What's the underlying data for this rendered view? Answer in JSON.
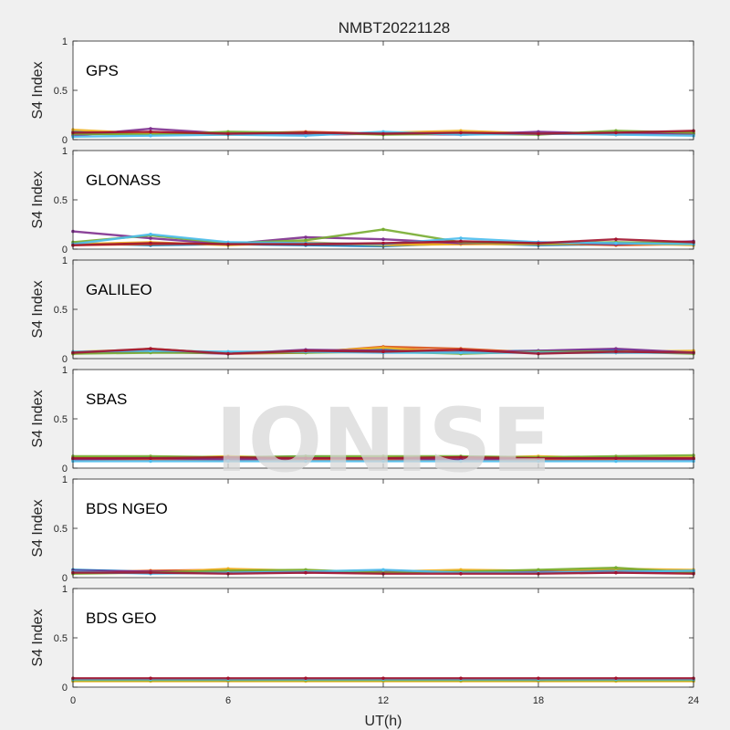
{
  "chart_data": {
    "type": "scatter",
    "title": "NMBT20221128",
    "xlabel": "UT(h)",
    "ylabel": "S4 Index",
    "xlim": [
      0,
      24
    ],
    "ylim": [
      0,
      1
    ],
    "x_ticks": [
      "0",
      "6",
      "12",
      "18",
      "24"
    ],
    "y_ticks": [
      "0",
      "0.5",
      "1"
    ],
    "watermark": "IONISE",
    "series_colors": [
      "#0072bd",
      "#d95319",
      "#edb120",
      "#7e2f8e",
      "#77ac30",
      "#4dbeee",
      "#a2142f"
    ],
    "panels": [
      {
        "name": "GPS",
        "background": "#ffffff",
        "series": [
          {
            "x": [
              0,
              3,
              6,
              9,
              12,
              15,
              18,
              21,
              24
            ],
            "y": [
              0.08,
              0.06,
              0.07,
              0.06,
              0.06,
              0.07,
              0.06,
              0.07,
              0.06
            ]
          },
          {
            "x": [
              0,
              3,
              6,
              9,
              12,
              15,
              18,
              21,
              24
            ],
            "y": [
              0.05,
              0.07,
              0.06,
              0.08,
              0.06,
              0.06,
              0.07,
              0.05,
              0.08
            ]
          },
          {
            "x": [
              0,
              3,
              6,
              9,
              12,
              15,
              18,
              21,
              24
            ],
            "y": [
              0.1,
              0.06,
              0.05,
              0.06,
              0.07,
              0.09,
              0.06,
              0.06,
              0.05
            ]
          },
          {
            "x": [
              0,
              3,
              6,
              9,
              12,
              15,
              18,
              21,
              24
            ],
            "y": [
              0.04,
              0.11,
              0.06,
              0.05,
              0.06,
              0.05,
              0.08,
              0.06,
              0.06
            ]
          },
          {
            "x": [
              0,
              3,
              6,
              9,
              12,
              15,
              18,
              21,
              24
            ],
            "y": [
              0.06,
              0.05,
              0.08,
              0.07,
              0.05,
              0.06,
              0.05,
              0.09,
              0.07
            ]
          },
          {
            "x": [
              0,
              3,
              6,
              9,
              12,
              15,
              18,
              21,
              24
            ],
            "y": [
              0.03,
              0.04,
              0.05,
              0.04,
              0.08,
              0.05,
              0.06,
              0.05,
              0.04
            ]
          },
          {
            "x": [
              0,
              3,
              6,
              9,
              12,
              15,
              18,
              21,
              24
            ],
            "y": [
              0.07,
              0.08,
              0.06,
              0.07,
              0.06,
              0.07,
              0.06,
              0.07,
              0.09
            ]
          }
        ]
      },
      {
        "name": "GLONASS",
        "background": "#ffffff",
        "series": [
          {
            "x": [
              0,
              3,
              6,
              9,
              12,
              15,
              18,
              21,
              24
            ],
            "y": [
              0.06,
              0.04,
              0.05,
              0.04,
              0.03,
              0.06,
              0.04,
              0.05,
              0.06
            ]
          },
          {
            "x": [
              0,
              3,
              6,
              9,
              12,
              15,
              18,
              21,
              24
            ],
            "y": [
              0.04,
              0.05,
              0.06,
              0.05,
              0.05,
              0.05,
              0.06,
              0.04,
              0.05
            ]
          },
          {
            "x": [
              0,
              3,
              6,
              9,
              12,
              15,
              18,
              21,
              24
            ],
            "y": [
              0.05,
              0.07,
              0.04,
              0.07,
              0.04,
              0.05,
              0.05,
              0.06,
              0.04
            ]
          },
          {
            "x": [
              0,
              3,
              6,
              9,
              12,
              15,
              18,
              21,
              24
            ],
            "y": [
              0.18,
              0.11,
              0.05,
              0.12,
              0.1,
              0.06,
              0.07,
              0.05,
              0.08
            ]
          },
          {
            "x": [
              0,
              3,
              6,
              9,
              12,
              15,
              18,
              21,
              24
            ],
            "y": [
              0.07,
              0.14,
              0.06,
              0.09,
              0.2,
              0.07,
              0.06,
              0.07,
              0.06
            ]
          },
          {
            "x": [
              0,
              3,
              6,
              9,
              12,
              15,
              18,
              21,
              24
            ],
            "y": [
              0.05,
              0.15,
              0.07,
              0.06,
              0.05,
              0.11,
              0.07,
              0.06,
              0.05
            ]
          },
          {
            "x": [
              0,
              3,
              6,
              9,
              12,
              15,
              18,
              21,
              24
            ],
            "y": [
              0.04,
              0.06,
              0.05,
              0.05,
              0.06,
              0.08,
              0.06,
              0.1,
              0.07
            ]
          }
        ]
      },
      {
        "name": "GALILEO",
        "background": "#f0f0f0",
        "series": [
          {
            "x": [
              0,
              3,
              6,
              9,
              12,
              15,
              18,
              21,
              24
            ],
            "y": [
              0.06,
              0.08,
              0.06,
              0.08,
              0.09,
              0.07,
              0.08,
              0.09,
              0.06
            ]
          },
          {
            "x": [
              0,
              3,
              6,
              9,
              12,
              15,
              18,
              21,
              24
            ],
            "y": [
              0.05,
              0.1,
              0.05,
              0.06,
              0.12,
              0.1,
              0.06,
              0.06,
              0.07
            ]
          },
          {
            "x": [
              0,
              3,
              6,
              9,
              12,
              15,
              18,
              21,
              24
            ],
            "y": [
              0.07,
              0.09,
              0.06,
              0.07,
              0.11,
              0.06,
              0.07,
              0.07,
              0.08
            ]
          },
          {
            "x": [
              0,
              3,
              6,
              9,
              12,
              15,
              18,
              21,
              24
            ],
            "y": [
              0.06,
              0.07,
              0.05,
              0.09,
              0.08,
              0.06,
              0.08,
              0.1,
              0.06
            ]
          },
          {
            "x": [
              0,
              3,
              6,
              9,
              12,
              15,
              18,
              21,
              24
            ],
            "y": [
              0.05,
              0.06,
              0.06,
              0.06,
              0.07,
              0.05,
              0.07,
              0.07,
              0.05
            ]
          },
          {
            "x": [
              0,
              3,
              6,
              9,
              12,
              15,
              18,
              21,
              24
            ],
            "y": [
              0.07,
              0.08,
              0.07,
              0.07,
              0.06,
              0.06,
              0.06,
              0.06,
              0.06
            ]
          },
          {
            "x": [
              0,
              3,
              6,
              9,
              12,
              15,
              18,
              21,
              24
            ],
            "y": [
              0.06,
              0.1,
              0.05,
              0.08,
              0.07,
              0.09,
              0.05,
              0.07,
              0.06
            ]
          }
        ]
      },
      {
        "name": "SBAS",
        "background": "#ffffff",
        "series": [
          {
            "x": [
              0,
              3,
              6,
              9,
              12,
              15,
              18,
              21,
              24
            ],
            "y": [
              0.1,
              0.11,
              0.1,
              0.12,
              0.1,
              0.11,
              0.1,
              0.11,
              0.1
            ]
          },
          {
            "x": [
              0,
              3,
              6,
              9,
              12,
              15,
              18,
              21,
              24
            ],
            "y": [
              0.08,
              0.09,
              0.08,
              0.09,
              0.08,
              0.09,
              0.08,
              0.09,
              0.09
            ]
          },
          {
            "x": [
              0,
              3,
              6,
              9,
              12,
              15,
              18,
              21,
              24
            ],
            "y": [
              0.11,
              0.1,
              0.12,
              0.1,
              0.11,
              0.1,
              0.12,
              0.1,
              0.11
            ]
          },
          {
            "x": [
              0,
              3,
              6,
              9,
              12,
              15,
              18,
              21,
              24
            ],
            "y": [
              0.09,
              0.1,
              0.09,
              0.1,
              0.1,
              0.09,
              0.1,
              0.1,
              0.09
            ]
          },
          {
            "x": [
              0,
              3,
              6,
              9,
              12,
              15,
              18,
              21,
              24
            ],
            "y": [
              0.12,
              0.12,
              0.11,
              0.12,
              0.12,
              0.12,
              0.11,
              0.12,
              0.13
            ]
          },
          {
            "x": [
              0,
              3,
              6,
              9,
              12,
              15,
              18,
              21,
              24
            ],
            "y": [
              0.07,
              0.07,
              0.07,
              0.07,
              0.07,
              0.07,
              0.07,
              0.07,
              0.07
            ]
          },
          {
            "x": [
              0,
              3,
              6,
              9,
              12,
              15,
              18,
              21,
              24
            ],
            "y": [
              0.1,
              0.1,
              0.11,
              0.1,
              0.1,
              0.11,
              0.1,
              0.1,
              0.1
            ]
          }
        ]
      },
      {
        "name": "BDS NGEO",
        "background": "#ffffff",
        "series": [
          {
            "x": [
              0,
              3,
              6,
              9,
              12,
              15,
              18,
              21,
              24
            ],
            "y": [
              0.08,
              0.06,
              0.07,
              0.06,
              0.05,
              0.07,
              0.06,
              0.08,
              0.07
            ]
          },
          {
            "x": [
              0,
              3,
              6,
              9,
              12,
              15,
              18,
              21,
              24
            ],
            "y": [
              0.05,
              0.07,
              0.08,
              0.06,
              0.07,
              0.06,
              0.05,
              0.06,
              0.05
            ]
          },
          {
            "x": [
              0,
              3,
              6,
              9,
              12,
              15,
              18,
              21,
              24
            ],
            "y": [
              0.06,
              0.05,
              0.09,
              0.07,
              0.06,
              0.08,
              0.07,
              0.09,
              0.08
            ]
          },
          {
            "x": [
              0,
              3,
              6,
              9,
              12,
              15,
              18,
              21,
              24
            ],
            "y": [
              0.07,
              0.06,
              0.06,
              0.05,
              0.07,
              0.05,
              0.06,
              0.05,
              0.06
            ]
          },
          {
            "x": [
              0,
              3,
              6,
              9,
              12,
              15,
              18,
              21,
              24
            ],
            "y": [
              0.04,
              0.05,
              0.07,
              0.08,
              0.05,
              0.06,
              0.08,
              0.1,
              0.05
            ]
          },
          {
            "x": [
              0,
              3,
              6,
              9,
              12,
              15,
              18,
              21,
              24
            ],
            "y": [
              0.06,
              0.04,
              0.05,
              0.06,
              0.08,
              0.05,
              0.05,
              0.06,
              0.07
            ]
          },
          {
            "x": [
              0,
              3,
              6,
              9,
              12,
              15,
              18,
              21,
              24
            ],
            "y": [
              0.05,
              0.05,
              0.04,
              0.05,
              0.04,
              0.04,
              0.04,
              0.05,
              0.04
            ]
          }
        ]
      },
      {
        "name": "BDS GEO",
        "background": "#ffffff",
        "series": [
          {
            "x": [
              0,
              3,
              6,
              9,
              12,
              15,
              18,
              21,
              24
            ],
            "y": [
              0.08,
              0.08,
              0.08,
              0.08,
              0.08,
              0.08,
              0.08,
              0.08,
              0.08
            ]
          },
          {
            "x": [
              0,
              3,
              6,
              9,
              12,
              15,
              18,
              21,
              24
            ],
            "y": [
              0.07,
              0.07,
              0.08,
              0.07,
              0.07,
              0.07,
              0.08,
              0.07,
              0.07
            ]
          },
          {
            "x": [
              0,
              3,
              6,
              9,
              12,
              15,
              18,
              21,
              24
            ],
            "y": [
              0.06,
              0.06,
              0.06,
              0.06,
              0.06,
              0.06,
              0.06,
              0.06,
              0.06
            ]
          },
          {
            "x": [
              0,
              3,
              6,
              9,
              12,
              15,
              18,
              21,
              24
            ],
            "y": [
              0.08,
              0.08,
              0.07,
              0.08,
              0.08,
              0.08,
              0.07,
              0.08,
              0.08
            ]
          },
          {
            "x": [
              0,
              3,
              6,
              9,
              12,
              15,
              18,
              21,
              24
            ],
            "y": [
              0.07,
              0.07,
              0.07,
              0.07,
              0.07,
              0.07,
              0.07,
              0.07,
              0.07
            ]
          },
          {
            "x": [
              0,
              3,
              6,
              9,
              12,
              15,
              18,
              21,
              24
            ],
            "y": [
              0.08,
              0.08,
              0.08,
              0.08,
              0.08,
              0.08,
              0.08,
              0.08,
              0.08
            ]
          },
          {
            "x": [
              0,
              3,
              6,
              9,
              12,
              15,
              18,
              21,
              24
            ],
            "y": [
              0.09,
              0.09,
              0.09,
              0.09,
              0.09,
              0.09,
              0.09,
              0.09,
              0.09
            ]
          }
        ]
      }
    ]
  }
}
